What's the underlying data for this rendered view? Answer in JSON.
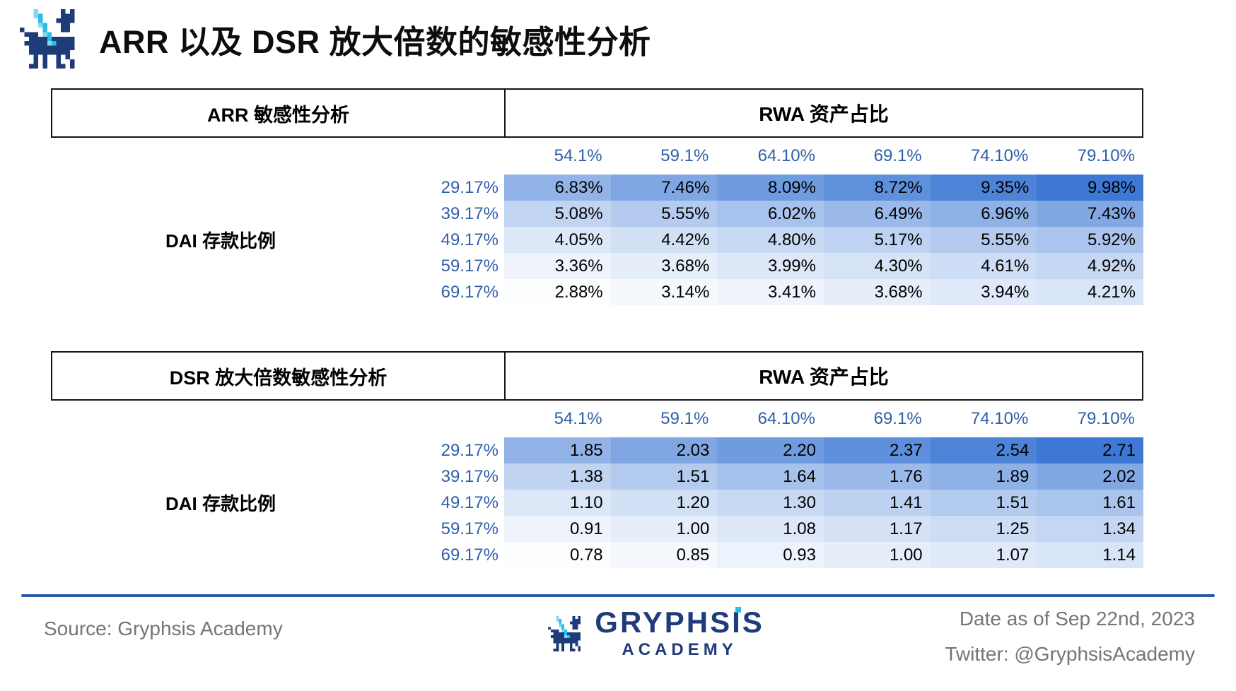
{
  "title": {
    "text": "ARR 以及 DSR 放大倍数的敏感性分析"
  },
  "colors": {
    "label_blue": "#2e5fa8",
    "heat_min": "#fcfdff",
    "heat_max": "#3c78d4",
    "divider_blue": "#2d5ba7",
    "brand_navy": "#203b7a",
    "brand_cyan": "#2bbee6"
  },
  "tables": [
    {
      "name_header": "ARR 敏感性分析",
      "group_header": "RWA 资产占比",
      "row_axis_label": "DAI 存款比例",
      "col_headers": [
        "54.1%",
        "59.1%",
        "64.10%",
        "69.1%",
        "74.10%",
        "79.10%"
      ],
      "rows": [
        {
          "label": "29.17%",
          "cells": [
            "6.83%",
            "7.46%",
            "8.09%",
            "8.72%",
            "9.35%",
            "9.98%"
          ]
        },
        {
          "label": "39.17%",
          "cells": [
            "5.08%",
            "5.55%",
            "6.02%",
            "6.49%",
            "6.96%",
            "7.43%"
          ]
        },
        {
          "label": "49.17%",
          "cells": [
            "4.05%",
            "4.42%",
            "4.80%",
            "5.17%",
            "5.55%",
            "5.92%"
          ]
        },
        {
          "label": "59.17%",
          "cells": [
            "3.36%",
            "3.68%",
            "3.99%",
            "4.30%",
            "4.61%",
            "4.92%"
          ]
        },
        {
          "label": "69.17%",
          "cells": [
            "2.88%",
            "3.14%",
            "3.41%",
            "3.68%",
            "3.94%",
            "4.21%"
          ]
        }
      ]
    },
    {
      "name_header": "DSR 放大倍数敏感性分析",
      "group_header": "RWA 资产占比",
      "row_axis_label": "DAI 存款比例",
      "col_headers": [
        "54.1%",
        "59.1%",
        "64.10%",
        "69.1%",
        "74.10%",
        "79.10%"
      ],
      "rows": [
        {
          "label": "29.17%",
          "cells": [
            "1.85",
            "2.03",
            "2.20",
            "2.37",
            "2.54",
            "2.71"
          ]
        },
        {
          "label": "39.17%",
          "cells": [
            "1.38",
            "1.51",
            "1.64",
            "1.76",
            "1.89",
            "2.02"
          ]
        },
        {
          "label": "49.17%",
          "cells": [
            "1.10",
            "1.20",
            "1.30",
            "1.41",
            "1.51",
            "1.61"
          ]
        },
        {
          "label": "59.17%",
          "cells": [
            "0.91",
            "1.00",
            "1.08",
            "1.17",
            "1.25",
            "1.34"
          ]
        },
        {
          "label": "69.17%",
          "cells": [
            "0.78",
            "0.85",
            "0.93",
            "1.00",
            "1.07",
            "1.14"
          ]
        }
      ]
    }
  ],
  "footer": {
    "source": "Source: Gryphsis Academy",
    "brand": "GRYPHSIS",
    "brand_sub": "ACADEMY",
    "date": "Date as of Sep 22nd, 2023",
    "twitter": "Twitter: @GryphsisAcademy"
  },
  "chart_data": [
    {
      "type": "heatmap",
      "title": "ARR 敏感性分析",
      "xlabel": "RWA 资产占比",
      "ylabel": "DAI 存款比例",
      "x_tick_labels": [
        "54.1%",
        "59.1%",
        "64.10%",
        "69.1%",
        "74.10%",
        "79.10%"
      ],
      "y_tick_labels": [
        "29.17%",
        "39.17%",
        "49.17%",
        "59.17%",
        "69.17%"
      ],
      "values_percent": [
        [
          6.83,
          7.46,
          8.09,
          8.72,
          9.35,
          9.98
        ],
        [
          5.08,
          5.55,
          6.02,
          6.49,
          6.96,
          7.43
        ],
        [
          4.05,
          4.42,
          4.8,
          5.17,
          5.55,
          5.92
        ],
        [
          3.36,
          3.68,
          3.99,
          4.3,
          4.61,
          4.92
        ],
        [
          2.88,
          3.14,
          3.41,
          3.68,
          3.94,
          4.21
        ]
      ],
      "value_range": [
        2.88,
        9.98
      ],
      "colorscale": [
        "#fcfdff",
        "#3c78d4"
      ]
    },
    {
      "type": "heatmap",
      "title": "DSR 放大倍数敏感性分析",
      "xlabel": "RWA 资产占比",
      "ylabel": "DAI 存款比例",
      "x_tick_labels": [
        "54.1%",
        "59.1%",
        "64.10%",
        "69.1%",
        "74.10%",
        "79.10%"
      ],
      "y_tick_labels": [
        "29.17%",
        "39.17%",
        "49.17%",
        "59.17%",
        "69.17%"
      ],
      "values": [
        [
          1.85,
          2.03,
          2.2,
          2.37,
          2.54,
          2.71
        ],
        [
          1.38,
          1.51,
          1.64,
          1.76,
          1.89,
          2.02
        ],
        [
          1.1,
          1.2,
          1.3,
          1.41,
          1.51,
          1.61
        ],
        [
          0.91,
          1.0,
          1.08,
          1.17,
          1.25,
          1.34
        ],
        [
          0.78,
          0.85,
          0.93,
          1.0,
          1.07,
          1.14
        ]
      ],
      "value_range": [
        0.78,
        2.71
      ],
      "colorscale": [
        "#fcfdff",
        "#3c78d4"
      ]
    }
  ]
}
